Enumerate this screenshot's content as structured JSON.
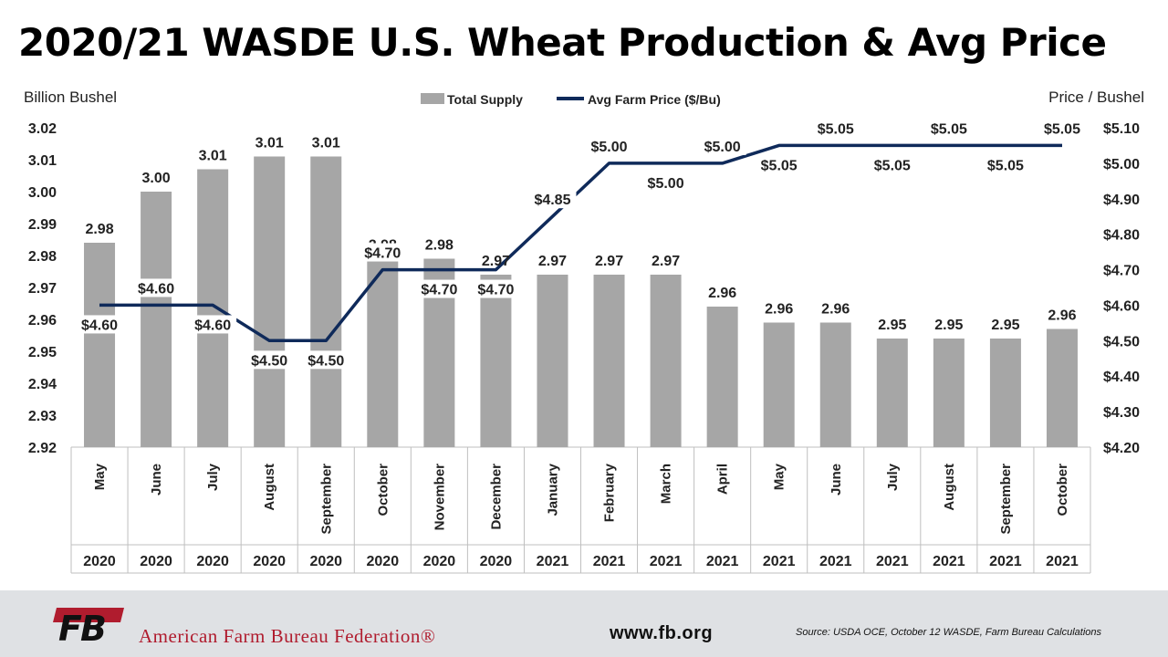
{
  "header": {
    "title": "2020/21 WASDE U.S. Wheat Production & Avg Price"
  },
  "chart_data": {
    "type": "bar+line",
    "left_axis_label": "Billion Bushel",
    "right_axis_label": "Price / Bushel",
    "y_left": {
      "min": 2.92,
      "max": 3.02,
      "ticks": [
        "2.92",
        "2.93",
        "2.94",
        "2.95",
        "2.96",
        "2.97",
        "2.98",
        "2.99",
        "3.00",
        "3.01",
        "3.02"
      ]
    },
    "y_right": {
      "min": 4.2,
      "max": 5.1,
      "ticks": [
        "$4.20",
        "$4.30",
        "$4.40",
        "$4.50",
        "$4.60",
        "$4.70",
        "$4.80",
        "$4.90",
        "$5.00",
        "$5.10"
      ]
    },
    "categories": [
      {
        "month": "May",
        "year": "2020"
      },
      {
        "month": "June",
        "year": "2020"
      },
      {
        "month": "July",
        "year": "2020"
      },
      {
        "month": "August",
        "year": "2020"
      },
      {
        "month": "September",
        "year": "2020"
      },
      {
        "month": "October",
        "year": "2020"
      },
      {
        "month": "November",
        "year": "2020"
      },
      {
        "month": "December",
        "year": "2020"
      },
      {
        "month": "January",
        "year": "2021"
      },
      {
        "month": "February",
        "year": "2021"
      },
      {
        "month": "March",
        "year": "2021"
      },
      {
        "month": "April",
        "year": "2021"
      },
      {
        "month": "May",
        "year": "2021"
      },
      {
        "month": "June",
        "year": "2021"
      },
      {
        "month": "July",
        "year": "2021"
      },
      {
        "month": "August",
        "year": "2021"
      },
      {
        "month": "September",
        "year": "2021"
      },
      {
        "month": "October",
        "year": "2021"
      }
    ],
    "series": [
      {
        "name": "Total Supply",
        "kind": "bar",
        "axis": "left",
        "color": "#a6a6a6",
        "values": [
          2.984,
          3.0,
          3.007,
          3.011,
          3.011,
          2.979,
          2.979,
          2.974,
          2.974,
          2.974,
          2.974,
          2.964,
          2.959,
          2.959,
          2.954,
          2.954,
          2.954,
          2.957
        ],
        "labels": [
          "2.98",
          "3.00",
          "3.01",
          "3.01",
          "3.01",
          "2.98",
          "2.98",
          "2.97",
          "2.97",
          "2.97",
          "2.97",
          "2.96",
          "2.96",
          "2.96",
          "2.95",
          "2.95",
          "2.95",
          "2.96"
        ]
      },
      {
        "name": "Avg Farm Price ($/Bu)",
        "kind": "line",
        "axis": "right",
        "color": "#0f2a5a",
        "values": [
          4.6,
          4.6,
          4.6,
          4.5,
          4.5,
          4.7,
          4.7,
          4.7,
          4.85,
          5.0,
          5.0,
          5.0,
          5.05,
          5.05,
          5.05,
          5.05,
          5.05,
          5.05
        ],
        "labels": [
          "$4.60",
          "$4.60",
          "$4.60",
          "$4.50",
          "$4.50",
          "$4.70",
          "$4.70",
          "$4.70",
          "$4.85",
          "$5.00",
          "$5.00",
          "$5.00",
          "$5.05",
          "$5.05",
          "$5.05",
          "$5.05",
          "$5.05",
          "$5.05"
        ]
      }
    ]
  },
  "footer": {
    "logo_text": "FB",
    "organization": "American Farm Bureau Federation®",
    "website": "www.fb.org",
    "source": "Source: USDA OCE, October 12 WASDE, Farm Bureau Calculations"
  }
}
